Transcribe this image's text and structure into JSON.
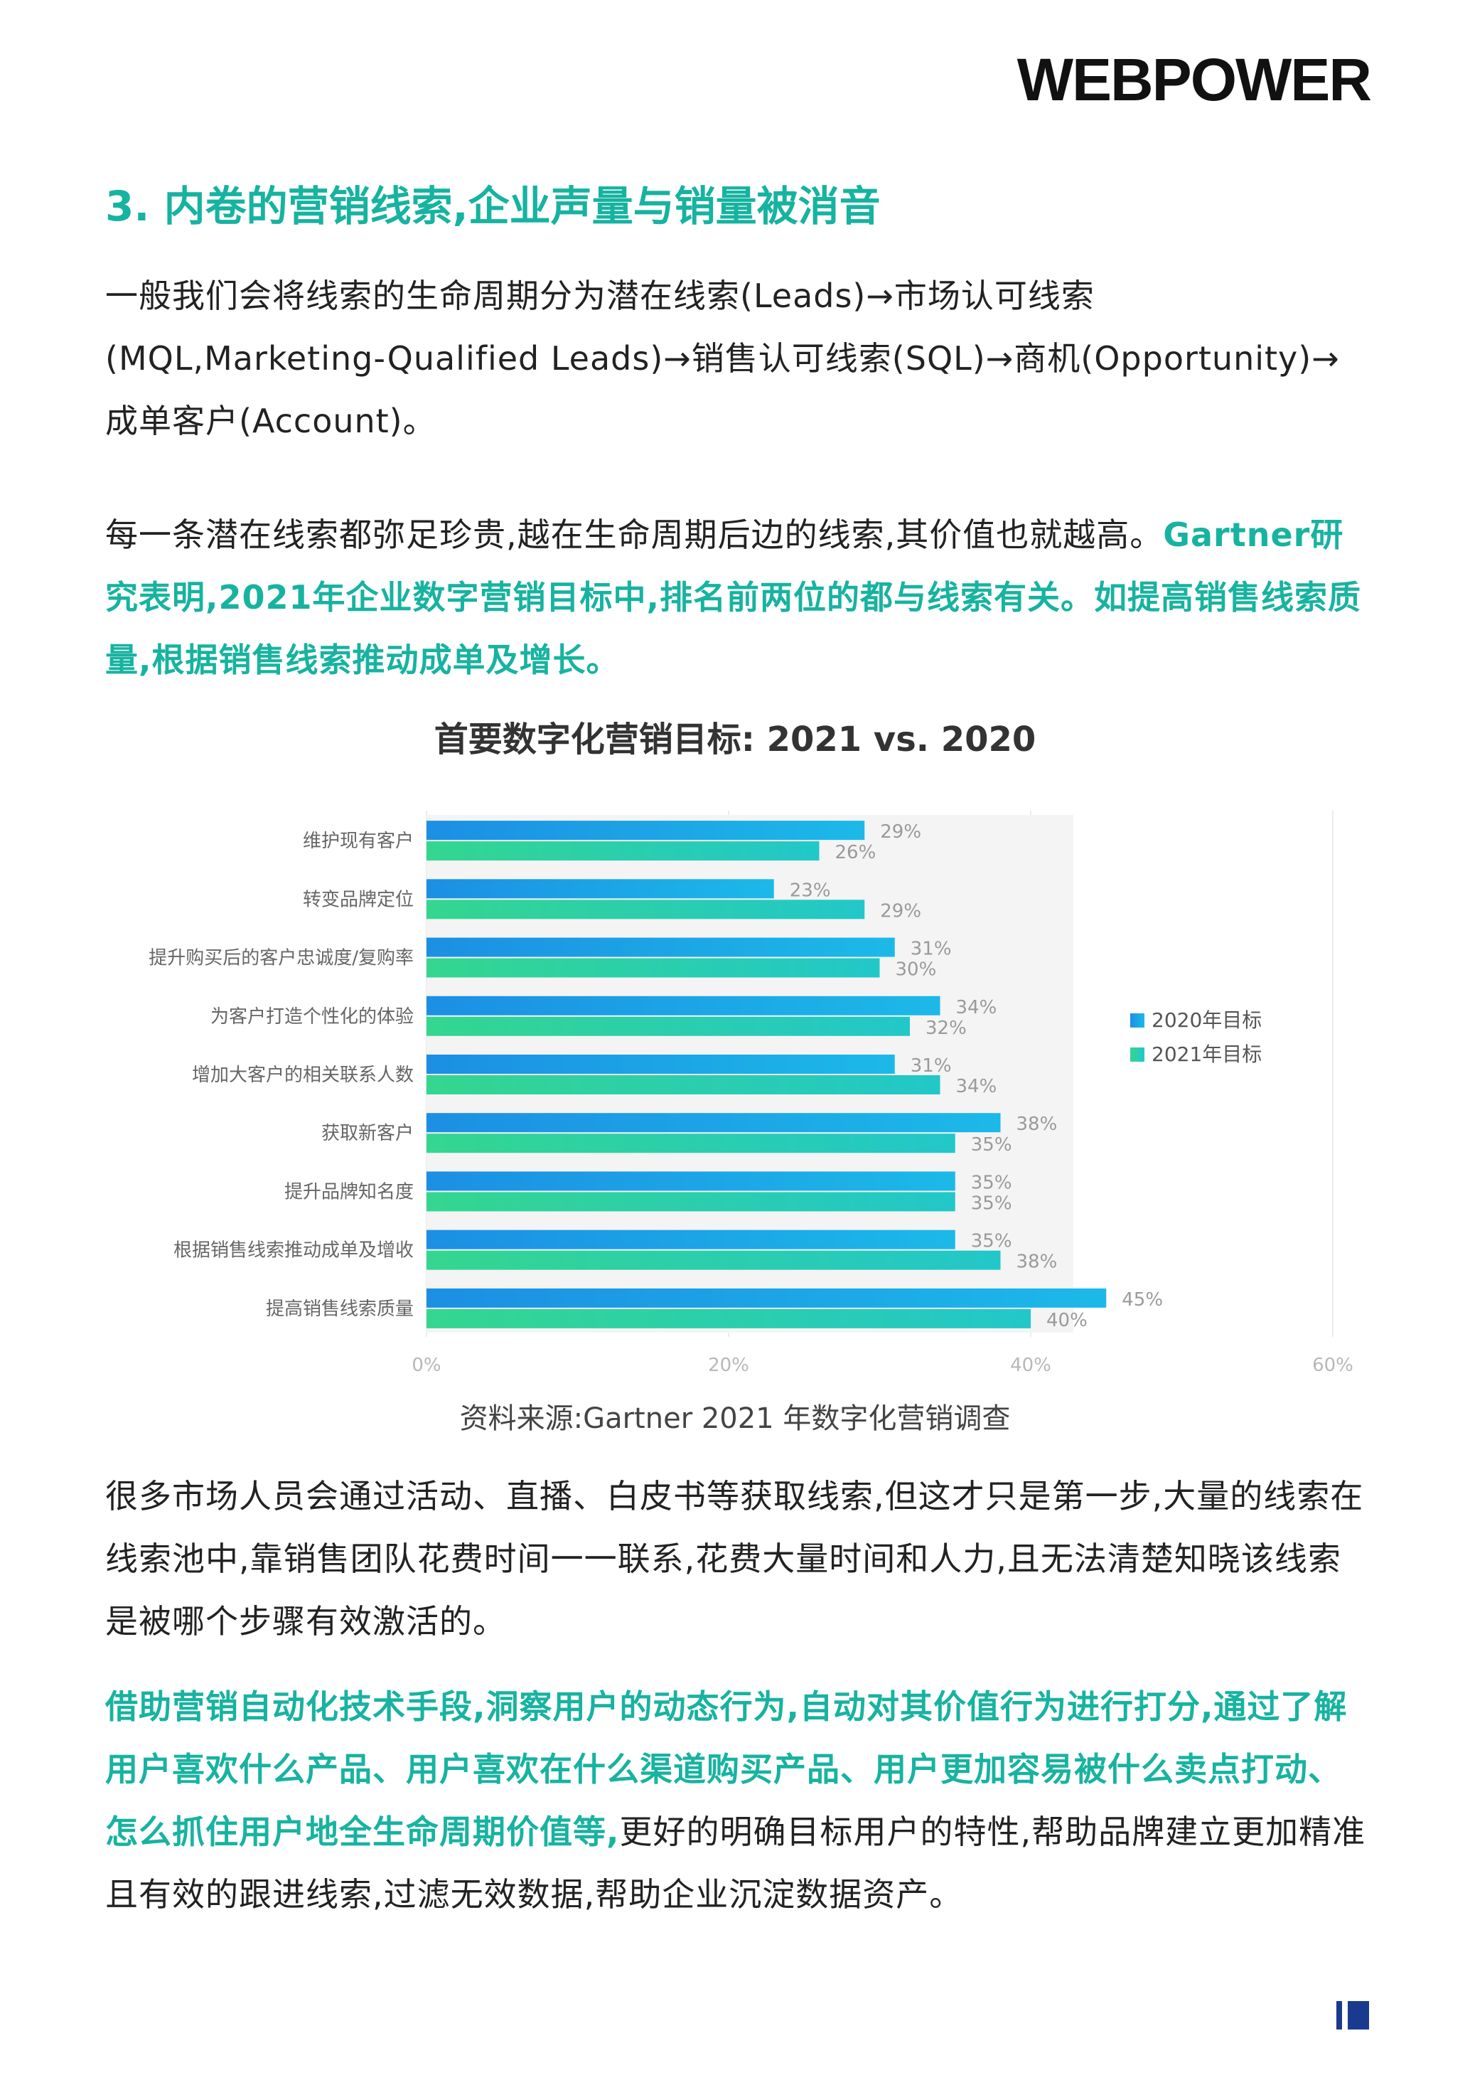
{
  "header": {
    "logo": "WEBPOWER"
  },
  "section": {
    "title": "3. 内卷的营销线索,企业声量与销量被消音"
  },
  "paragraphs": {
    "p1": "一般我们会将线索的生命周期分为潜在线索(Leads)→市场认可线索(MQL,Marketing-Qualified Leads)→销售认可线索(SQL)→商机(Opportunity)→成单客户(Account)。",
    "p2_plain": "每一条潜在线索都弥足珍贵,越在生命周期后边的线索,其价值也就越高。",
    "p2_highlight": "Gartner研究表明,2021年企业数字营销目标中,排名前两位的都与线索有关。如提高销售线索质量,根据销售线索推动成单及增长。",
    "p3": "很多市场人员会通过活动、直播、白皮书等获取线索,但这才只是第一步,大量的线索在线索池中,靠销售团队花费时间一一联系,花费大量时间和人力,且无法清楚知晓该线索是被哪个步骤有效激活的。",
    "p4_highlight": "借助营销自动化技术手段,洞察用户的动态行为,自动对其价值行为进行打分,通过了解用户喜欢什么产品、用户喜欢在什么渠道购买产品、用户更加容易被什么卖点打动、怎么抓住用户地全生命周期价值等,",
    "p4_plain": "更好的明确目标用户的特性,帮助品牌建立更加精准且有效的跟进线索,过滤无效数据,帮助企业沉淀数据资产。"
  },
  "chart_caption": "资料来源:Gartner 2021 年数字化营销调查",
  "chart_data": {
    "type": "bar",
    "orientation": "horizontal",
    "title": "首要数字化营销目标: 2021 vs. 2020",
    "categories": [
      "维护现有客户",
      "转变品牌定位",
      "提升购买后的客户忠诚度/复购率",
      "为客户打造个性化的体验",
      "增加大客户的相关联系人数",
      "获取新客户",
      "提升品牌知名度",
      "根据销售线索推动成单及增收",
      "提高销售线索质量"
    ],
    "series": [
      {
        "name": "2020年目标",
        "values": [
          29,
          23,
          31,
          34,
          31,
          38,
          35,
          35,
          45
        ],
        "color": "#1a9ee6"
      },
      {
        "name": "2021年目标",
        "values": [
          26,
          29,
          30,
          32,
          34,
          35,
          35,
          38,
          40
        ],
        "color": "#2fd39a"
      }
    ],
    "value_suffix": "%",
    "xlim": [
      0,
      60
    ],
    "xticks": [
      "0%",
      "20%",
      "40%",
      "60%"
    ],
    "grid": true,
    "legend_position": "right"
  },
  "colors": {
    "accent": "#17b3a0",
    "text": "#222222",
    "bar2020": "#1a9ee6",
    "bar2021": "#2fd39a"
  }
}
